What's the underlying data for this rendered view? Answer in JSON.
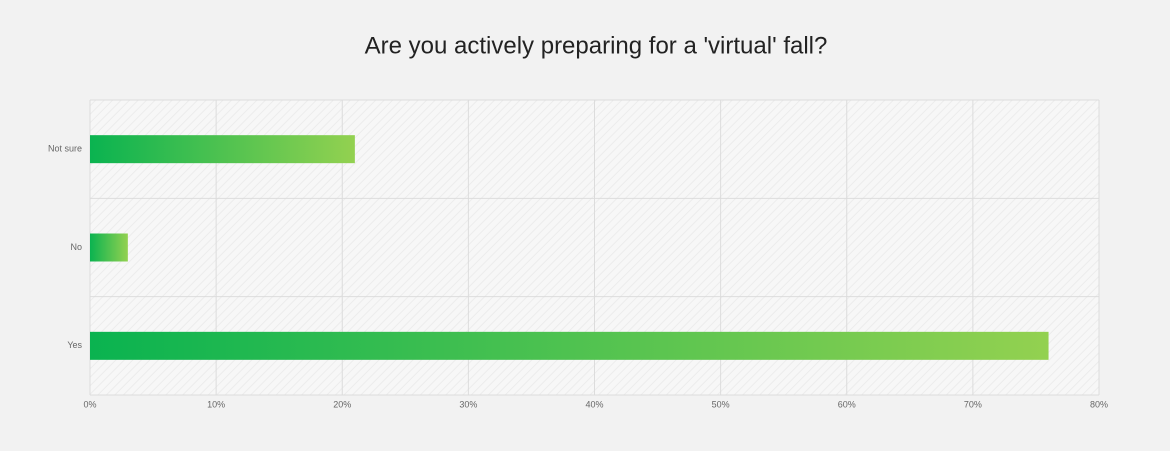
{
  "chart_data": {
    "type": "hbar",
    "title": "Are you actively preparing for a 'virtual' fall?",
    "categories": [
      "Not sure",
      "No",
      "Yes"
    ],
    "values": [
      21,
      3,
      76
    ],
    "gradient": [
      "#0ab350",
      "#93d150"
    ],
    "xlim": [
      0,
      80
    ],
    "xticks": [
      {
        "value": 0,
        "label": "0%"
      },
      {
        "value": 10,
        "label": "10%"
      },
      {
        "value": 20,
        "label": "20%"
      },
      {
        "value": 30,
        "label": "30%"
      },
      {
        "value": 40,
        "label": "40%"
      },
      {
        "value": 50,
        "label": "50%"
      },
      {
        "value": 60,
        "label": "60%"
      },
      {
        "value": 70,
        "label": "70%"
      },
      {
        "value": 80,
        "label": "80%"
      }
    ],
    "grid": true
  }
}
